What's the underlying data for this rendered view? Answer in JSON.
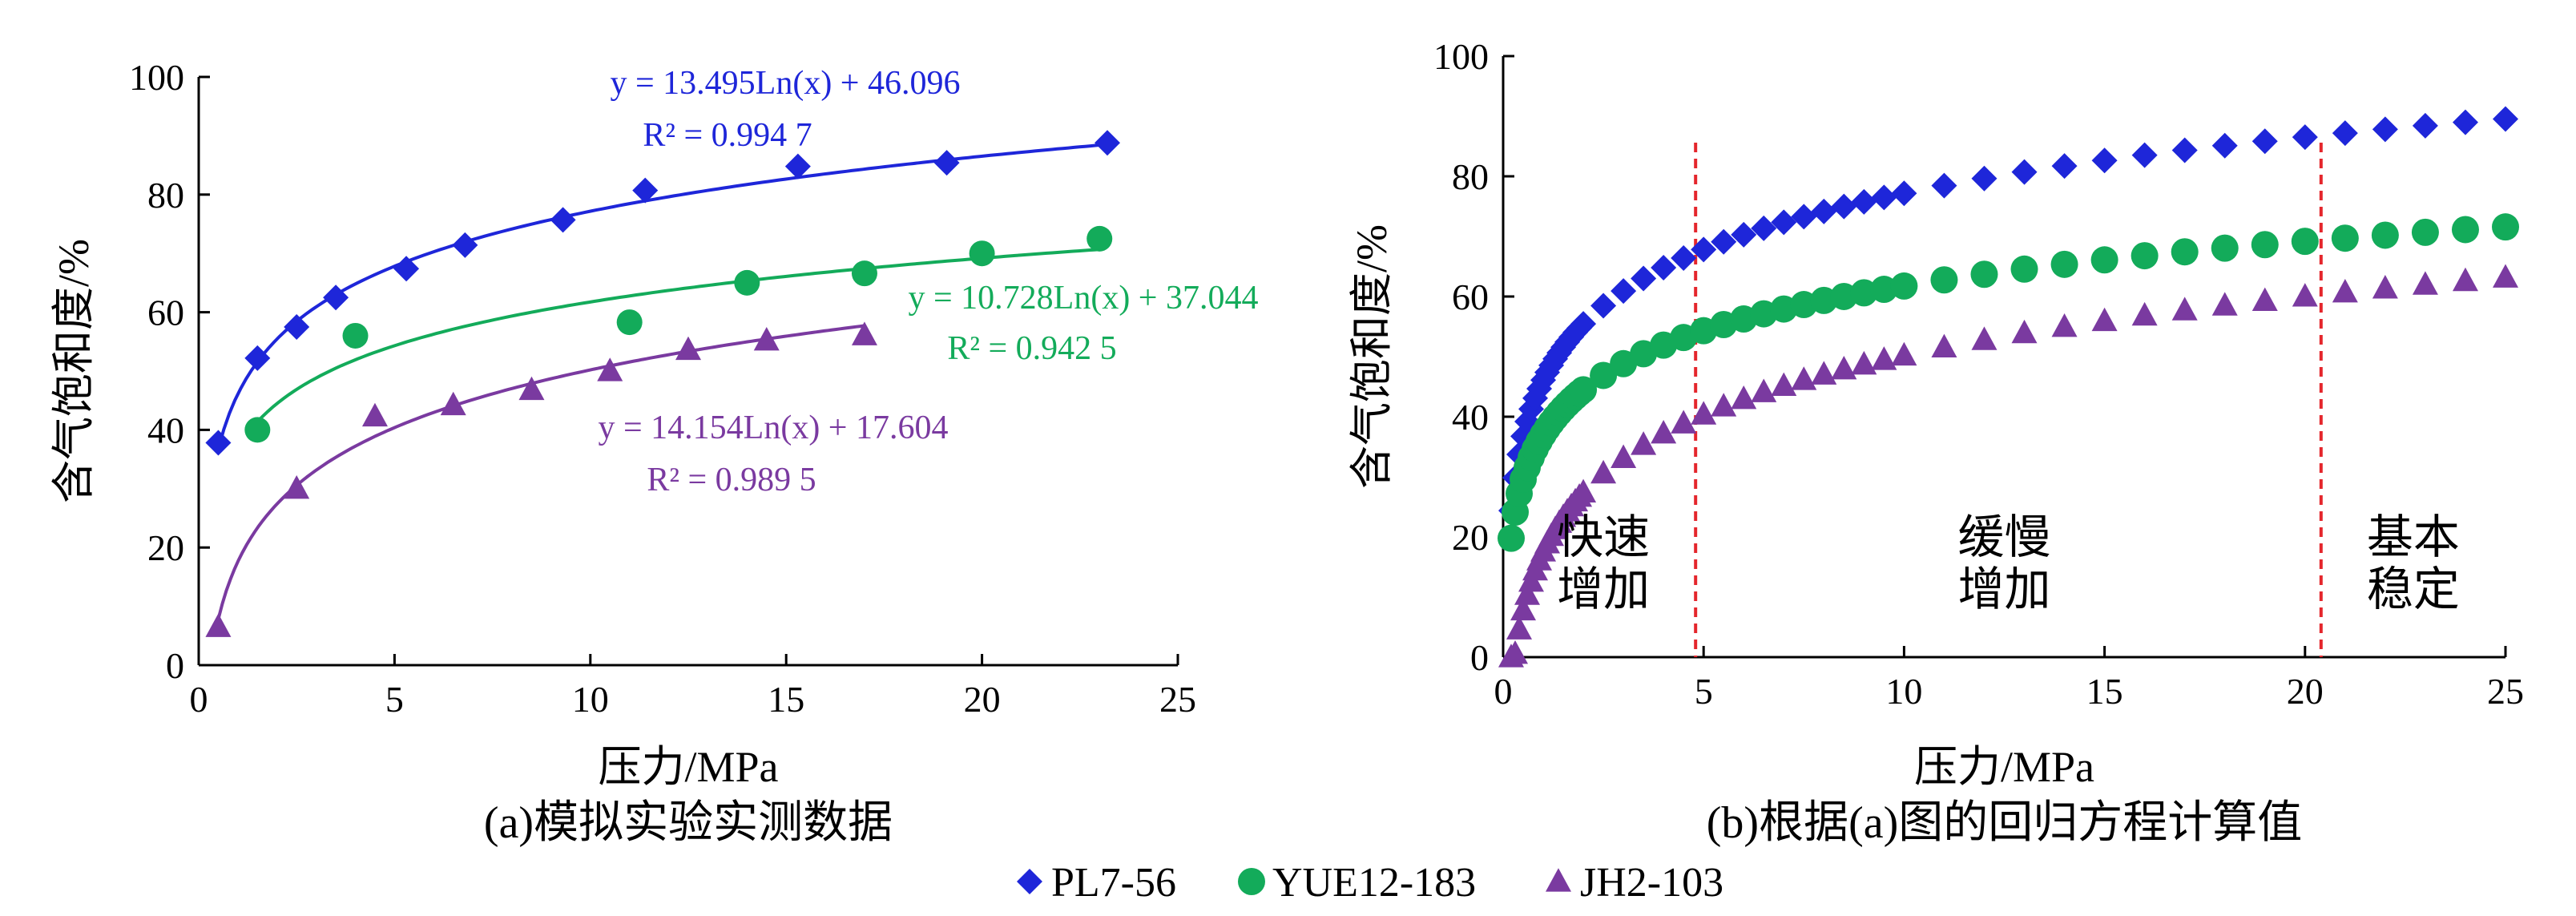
{
  "colors": {
    "PL7-56": "#1e26d9",
    "YUE12-183": "#13ab5a",
    "JH2-103": "#7a3aa0",
    "divider": "#e4262c",
    "axis": "#000000"
  },
  "legend": [
    {
      "name": "PL7-56",
      "marker": "diamond"
    },
    {
      "name": "YUE12-183",
      "marker": "circle"
    },
    {
      "name": "JH2-103",
      "marker": "triangle"
    }
  ],
  "chart_data": [
    {
      "type": "scatter",
      "caption": "(a)模拟实验实测数据",
      "xlabel": "压力/MPa",
      "ylabel": "含气饱和度/%",
      "xlim": [
        0,
        25
      ],
      "ylim": [
        0,
        100
      ],
      "xticks": [
        0,
        5,
        10,
        15,
        20,
        25
      ],
      "yticks": [
        0,
        20,
        40,
        60,
        80,
        100
      ],
      "series": [
        {
          "name": "PL7-56",
          "marker": "diamond",
          "x": [
            0.5,
            1.5,
            2.5,
            3.5,
            5.3,
            6.8,
            9.3,
            11.4,
            15.3,
            19.1,
            23.2
          ],
          "y": [
            37.8,
            52.2,
            57.5,
            62.5,
            67.4,
            71.4,
            75.7,
            80.7,
            84.8,
            85.4,
            88.8
          ],
          "fit": {
            "a": 13.495,
            "b": 46.096,
            "x_from": 0.5,
            "x_to": 23.2
          },
          "equation": "y = 13.495Ln(x) + 46.096",
          "r2": "R² = 0.994 7"
        },
        {
          "name": "YUE12-183",
          "marker": "circle",
          "x": [
            1.5,
            4.0,
            11.0,
            14.0,
            17.0,
            20.0,
            23.0
          ],
          "y": [
            40.0,
            56.0,
            58.3,
            65.0,
            66.6,
            70.0,
            72.5
          ],
          "fit": {
            "a": 10.728,
            "b": 37.044,
            "x_from": 1.5,
            "x_to": 23.0
          },
          "equation": "y = 10.728Ln(x) + 37.044",
          "r2": "R² = 0.942 5"
        },
        {
          "name": "JH2-103",
          "marker": "triangle",
          "x": [
            0.5,
            2.5,
            4.5,
            6.5,
            8.5,
            10.5,
            12.5,
            14.5,
            17.0
          ],
          "y": [
            6.5,
            30.0,
            42.3,
            44.2,
            46.8,
            50.0,
            53.6,
            55.2,
            56.1
          ],
          "fit": {
            "a": 14.154,
            "b": 17.604,
            "x_from": 0.5,
            "x_to": 17.0
          },
          "equation": "y = 14.154Ln(x) + 17.604",
          "r2": "R² = 0.989 5"
        }
      ]
    },
    {
      "type": "scatter",
      "caption": "(b)根据(a)图的回归方程计算值",
      "xlabel": "压力/MPa",
      "ylabel": "含气饱和度/%",
      "xlim": [
        0,
        25
      ],
      "ylim": [
        0,
        100
      ],
      "xticks": [
        0,
        5,
        10,
        15,
        20,
        25
      ],
      "yticks": [
        0,
        20,
        40,
        60,
        80,
        100
      ],
      "x": [
        0.2,
        0.3,
        0.4,
        0.5,
        0.6,
        0.7,
        0.8,
        0.9,
        1.0,
        1.1,
        1.2,
        1.3,
        1.4,
        1.5,
        1.6,
        1.7,
        1.8,
        1.9,
        2.0,
        2.5,
        3.0,
        3.5,
        4.0,
        4.5,
        5.0,
        5.5,
        6.0,
        6.5,
        7.0,
        7.5,
        8.0,
        8.5,
        9.0,
        9.5,
        10,
        11,
        12,
        13,
        14,
        15,
        16,
        17,
        18,
        19,
        20,
        21,
        22,
        23,
        24,
        25
      ],
      "series": [
        {
          "name": "PL7-56",
          "marker": "diamond",
          "a": 13.495,
          "b": 46.096,
          "y_floor": 0
        },
        {
          "name": "YUE12-183",
          "marker": "circle",
          "a": 10.728,
          "b": 37.044,
          "y_floor": 0
        },
        {
          "name": "JH2-103",
          "marker": "triangle",
          "a": 14.154,
          "b": 17.604,
          "y_floor": 0
        }
      ],
      "dividers": [
        4.8,
        20.4
      ],
      "regions": [
        {
          "line1": "快速",
          "line2": "增加",
          "x": 2.5
        },
        {
          "line1": "缓慢",
          "line2": "增加",
          "x": 12.5
        },
        {
          "line1": "基本",
          "line2": "稳定",
          "x": 22.7
        }
      ]
    }
  ]
}
